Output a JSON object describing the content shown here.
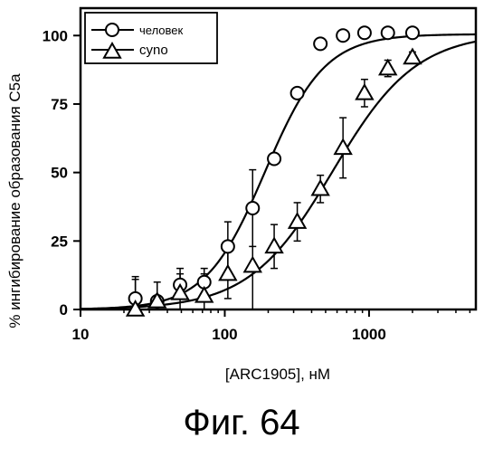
{
  "figure": {
    "caption": "Фиг. 64"
  },
  "chart_data": {
    "type": "scatter",
    "title": "",
    "xlabel": "[ARC1905], нМ",
    "ylabel": "% ингибирование образования C5a",
    "xscale": "log",
    "xlim": [
      10,
      5500
    ],
    "ylim": [
      0,
      110
    ],
    "x_ticks": [
      {
        "value": 10,
        "label": "10"
      },
      {
        "value": 100,
        "label": "100"
      },
      {
        "value": 1000,
        "label": "1000"
      }
    ],
    "y_ticks": [
      {
        "value": 0,
        "label": "0"
      },
      {
        "value": 25,
        "label": "25"
      },
      {
        "value": 50,
        "label": "50"
      },
      {
        "value": 75,
        "label": "75"
      },
      {
        "value": 100,
        "label": "100"
      }
    ],
    "grid": false,
    "legend_position": "top-left",
    "series": [
      {
        "name": "человек",
        "marker": "circle",
        "points": [
          {
            "x": 24,
            "y": 4,
            "err": 8
          },
          {
            "x": 34,
            "y": 3,
            "err": 2
          },
          {
            "x": 49,
            "y": 9,
            "err": 4
          },
          {
            "x": 72,
            "y": 10,
            "err": 5
          },
          {
            "x": 105,
            "y": 23,
            "err": 9
          },
          {
            "x": 156,
            "y": 37,
            "err": 14
          },
          {
            "x": 220,
            "y": 55,
            "err": 2
          },
          {
            "x": 318,
            "y": 79,
            "err": 2
          },
          {
            "x": 460,
            "y": 97,
            "err": 2
          },
          {
            "x": 660,
            "y": 100,
            "err": 2
          },
          {
            "x": 930,
            "y": 101,
            "err": 1
          },
          {
            "x": 1350,
            "y": 101,
            "err": 1
          },
          {
            "x": 2000,
            "y": 101,
            "err": 1
          }
        ],
        "fit": {
          "ec50": 190,
          "hill": 2.1,
          "bottom": 0,
          "top": 100.5
        }
      },
      {
        "name": "cyno",
        "marker": "triangle",
        "points": [
          {
            "x": 24,
            "y": 0,
            "err": 11
          },
          {
            "x": 34,
            "y": 3,
            "err": 7
          },
          {
            "x": 49,
            "y": 6,
            "err": 9
          },
          {
            "x": 72,
            "y": 5,
            "err": 8
          },
          {
            "x": 105,
            "y": 13,
            "err": 9
          },
          {
            "x": 156,
            "y": 16,
            "err": 20
          },
          {
            "x": 220,
            "y": 23,
            "err": 8
          },
          {
            "x": 318,
            "y": 32,
            "err": 7
          },
          {
            "x": 460,
            "y": 44,
            "err": 5
          },
          {
            "x": 660,
            "y": 59,
            "err": 11
          },
          {
            "x": 930,
            "y": 79,
            "err": 5
          },
          {
            "x": 1350,
            "y": 88,
            "err": 3
          },
          {
            "x": 2000,
            "y": 92,
            "err": 2
          }
        ],
        "fit": {
          "ec50": 560,
          "hill": 1.5,
          "bottom": 0,
          "top": 101
        }
      }
    ]
  }
}
